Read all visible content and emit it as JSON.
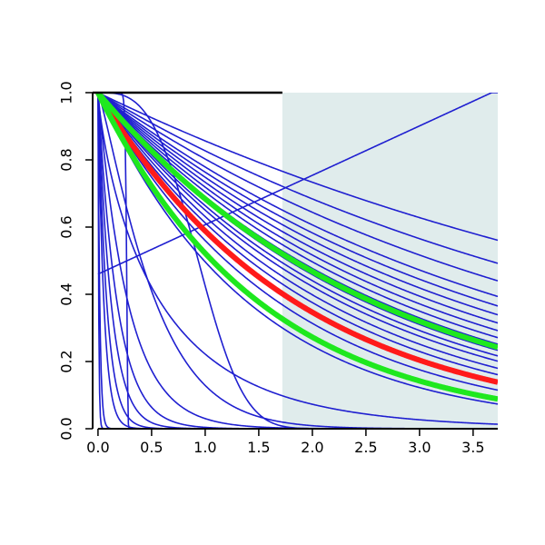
{
  "chart_data": {
    "type": "line",
    "title": "",
    "xlabel": "",
    "ylabel": "",
    "xlim": [
      -0.05,
      3.73
    ],
    "ylim": [
      0,
      1
    ],
    "x_ticks": [
      "0.0",
      "0.5",
      "1.0",
      "1.5",
      "2.0",
      "2.5",
      "3.0",
      "3.5"
    ],
    "y_ticks": [
      "0.0",
      "0.2",
      "0.4",
      "0.6",
      "0.8",
      "1.0"
    ],
    "shaded_region": {
      "x_from": 1.72,
      "x_to": 3.73,
      "color": "#e0ecec"
    },
    "colors": {
      "blue": "#1f1fd0",
      "red": "#ff1a1a",
      "green": "#1ee81e"
    },
    "series": [
      {
        "color": "blue",
        "kind": "line",
        "params": [
          0.46,
          0.147
        ]
      },
      {
        "color": "blue",
        "kind": "exp",
        "params": [
          0.155
        ]
      },
      {
        "color": "blue",
        "kind": "exp",
        "params": [
          0.19
        ]
      },
      {
        "color": "blue",
        "kind": "exp",
        "params": [
          0.22
        ]
      },
      {
        "color": "blue",
        "kind": "exp",
        "params": [
          0.25
        ]
      },
      {
        "color": "blue",
        "kind": "exp",
        "params": [
          0.27
        ]
      },
      {
        "color": "blue",
        "kind": "exp",
        "params": [
          0.29
        ]
      },
      {
        "color": "blue",
        "kind": "exp",
        "params": [
          0.31
        ]
      },
      {
        "color": "blue",
        "kind": "exp",
        "params": [
          0.33
        ]
      },
      {
        "color": "blue",
        "kind": "exp",
        "params": [
          0.35
        ]
      },
      {
        "color": "blue",
        "kind": "exp",
        "params": [
          0.37
        ]
      },
      {
        "color": "blue",
        "kind": "exp",
        "params": [
          0.39
        ]
      },
      {
        "color": "blue",
        "kind": "exp",
        "params": [
          0.41
        ]
      },
      {
        "color": "blue",
        "kind": "exp",
        "params": [
          0.43
        ]
      },
      {
        "color": "blue",
        "kind": "exp",
        "params": [
          0.46
        ]
      },
      {
        "color": "blue",
        "kind": "exp",
        "params": [
          0.49
        ]
      },
      {
        "color": "blue",
        "kind": "exp",
        "params": [
          0.53
        ]
      },
      {
        "color": "blue",
        "kind": "exp",
        "params": [
          0.58
        ]
      },
      {
        "color": "blue",
        "kind": "exp",
        "params": [
          0.64
        ]
      },
      {
        "color": "blue",
        "kind": "exp",
        "params": [
          0.7
        ]
      },
      {
        "color": "blue",
        "kind": "weibull",
        "params": [
          0.55,
          1.2
        ]
      },
      {
        "color": "blue",
        "kind": "weibull",
        "params": [
          1.05,
          3.2
        ]
      },
      {
        "color": "blue",
        "kind": "weibull",
        "params": [
          0.6,
          0.8
        ]
      },
      {
        "color": "blue",
        "kind": "weibull",
        "params": [
          0.27,
          30
        ]
      },
      {
        "color": "blue",
        "kind": "exp",
        "params": [
          3.5
        ]
      },
      {
        "color": "blue",
        "kind": "exp",
        "params": [
          5.5
        ]
      },
      {
        "color": "blue",
        "kind": "exp",
        "params": [
          8
        ]
      },
      {
        "color": "blue",
        "kind": "exp",
        "params": [
          12
        ]
      },
      {
        "color": "blue",
        "kind": "exp",
        "params": [
          18
        ]
      },
      {
        "color": "blue",
        "kind": "exp",
        "params": [
          60
        ]
      },
      {
        "color": "blue",
        "kind": "exp",
        "params": [
          150
        ]
      },
      {
        "color": "red",
        "kind": "exp",
        "params": [
          0.53
        ],
        "thick": true
      },
      {
        "color": "green",
        "kind": "exp",
        "params": [
          0.38
        ],
        "thick": true
      },
      {
        "color": "green",
        "kind": "exp",
        "params": [
          0.65
        ],
        "thick": true
      }
    ]
  }
}
